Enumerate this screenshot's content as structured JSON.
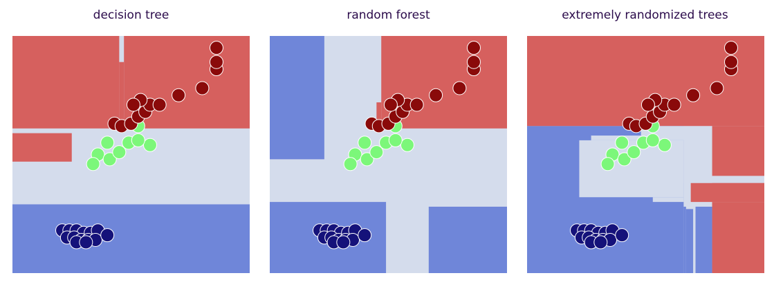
{
  "colors": {
    "class0_region": "#6f86d9",
    "class1_region": "#d4dcec",
    "class2_region": "#d6605e",
    "class0_point": "#15127a",
    "class1_point": "#7cf77a",
    "class2_point": "#8a0a0a"
  },
  "chart_data": [
    {
      "type": "scatter",
      "title": "decision tree",
      "xlim": [
        0,
        1
      ],
      "ylim": [
        0,
        1
      ],
      "grid": false,
      "axes_visible": false,
      "regions": [
        {
          "class": 2,
          "rects": [
            [
              0,
              0.61,
              0.45,
              1
            ],
            [
              0.47,
              0.61,
              1,
              1
            ],
            [
              0.45,
              0.61,
              0.47,
              0.89
            ],
            [
              0,
              0.47,
              0.25,
              0.59
            ]
          ]
        },
        {
          "class": 0,
          "rects": [
            [
              0,
              0,
              1,
              0.29
            ]
          ]
        }
      ],
      "points": [
        {
          "class": 0,
          "x": [
            0.21,
            0.24,
            0.27,
            0.3,
            0.33,
            0.36,
            0.23,
            0.26,
            0.29,
            0.32,
            0.35,
            0.4,
            0.27,
            0.31
          ],
          "y": [
            0.18,
            0.18,
            0.18,
            0.17,
            0.17,
            0.18,
            0.15,
            0.15,
            0.14,
            0.14,
            0.14,
            0.16,
            0.13,
            0.13
          ]
        },
        {
          "class": 1,
          "x": [
            0.4,
            0.36,
            0.34,
            0.41,
            0.45,
            0.53,
            0.49,
            0.58,
            0.53
          ],
          "y": [
            0.55,
            0.5,
            0.46,
            0.48,
            0.51,
            0.62,
            0.55,
            0.54,
            0.56
          ]
        },
        {
          "class": 2,
          "x": [
            0.43,
            0.46,
            0.5,
            0.53,
            0.56,
            0.58,
            0.62,
            0.7,
            0.8,
            0.86,
            0.86,
            0.86,
            0.54,
            0.51
          ],
          "y": [
            0.63,
            0.62,
            0.63,
            0.66,
            0.68,
            0.71,
            0.71,
            0.75,
            0.78,
            0.86,
            0.89,
            0.95,
            0.73,
            0.71
          ]
        }
      ]
    },
    {
      "type": "scatter",
      "title": "random forest",
      "xlim": [
        0,
        1
      ],
      "ylim": [
        0,
        1
      ],
      "grid": false,
      "axes_visible": false,
      "regions": [
        {
          "class": 2,
          "rects": [
            [
              0.47,
              0.61,
              1,
              1
            ],
            [
              0.45,
              0.61,
              0.47,
              0.72
            ]
          ]
        },
        {
          "class": 0,
          "rects": [
            [
              0,
              0.48,
              0.23,
              1
            ],
            [
              0,
              0,
              0.49,
              0.3
            ],
            [
              0.67,
              0,
              1,
              0.28
            ]
          ]
        }
      ],
      "points": [
        {
          "class": 0,
          "x": [
            0.21,
            0.24,
            0.27,
            0.3,
            0.33,
            0.36,
            0.23,
            0.26,
            0.29,
            0.32,
            0.35,
            0.4,
            0.27,
            0.31
          ],
          "y": [
            0.18,
            0.18,
            0.18,
            0.17,
            0.17,
            0.18,
            0.15,
            0.15,
            0.14,
            0.14,
            0.14,
            0.16,
            0.13,
            0.13
          ]
        },
        {
          "class": 1,
          "x": [
            0.4,
            0.36,
            0.34,
            0.41,
            0.45,
            0.53,
            0.49,
            0.58,
            0.53
          ],
          "y": [
            0.55,
            0.5,
            0.46,
            0.48,
            0.51,
            0.62,
            0.55,
            0.54,
            0.56
          ]
        },
        {
          "class": 2,
          "x": [
            0.43,
            0.46,
            0.5,
            0.53,
            0.56,
            0.58,
            0.62,
            0.7,
            0.8,
            0.86,
            0.86,
            0.86,
            0.54,
            0.51
          ],
          "y": [
            0.63,
            0.62,
            0.63,
            0.66,
            0.68,
            0.71,
            0.71,
            0.75,
            0.78,
            0.86,
            0.89,
            0.95,
            0.73,
            0.71
          ]
        }
      ]
    },
    {
      "type": "scatter",
      "title": "extremely randomized trees",
      "xlim": [
        0,
        1
      ],
      "ylim": [
        0,
        1
      ],
      "grid": false,
      "axes_visible": false,
      "regions": [
        {
          "class": 2,
          "rects": [
            [
              0,
              0.62,
              1,
              1
            ],
            [
              0.78,
              0.41,
              1,
              0.62
            ],
            [
              0.69,
              0.3,
              1,
              0.38
            ],
            [
              0.78,
              0,
              1,
              0.3
            ]
          ]
        },
        {
          "class": 0,
          "rects": [
            [
              0,
              0,
              0.66,
              0.62
            ],
            [
              0.66,
              0,
              0.67,
              0.28
            ],
            [
              0.67,
              0,
              0.7,
              0.27
            ],
            [
              0.71,
              0,
              0.78,
              0.28
            ]
          ]
        },
        {
          "class": 1,
          "rects": [
            [
              0.22,
              0.32,
              0.66,
              0.56
            ],
            [
              0.27,
              0.56,
              0.48,
              0.58
            ],
            [
              0.48,
              0.56,
              0.78,
              0.62
            ],
            [
              0.66,
              0.38,
              0.78,
              0.56
            ],
            [
              0.53,
              0.3,
              0.66,
              0.32
            ]
          ]
        }
      ],
      "points": [
        {
          "class": 0,
          "x": [
            0.21,
            0.24,
            0.27,
            0.3,
            0.33,
            0.36,
            0.23,
            0.26,
            0.29,
            0.32,
            0.35,
            0.4,
            0.27,
            0.31
          ],
          "y": [
            0.18,
            0.18,
            0.18,
            0.17,
            0.17,
            0.18,
            0.15,
            0.15,
            0.14,
            0.14,
            0.14,
            0.16,
            0.13,
            0.13
          ]
        },
        {
          "class": 1,
          "x": [
            0.4,
            0.36,
            0.34,
            0.41,
            0.45,
            0.53,
            0.49,
            0.58,
            0.53
          ],
          "y": [
            0.55,
            0.5,
            0.46,
            0.48,
            0.51,
            0.62,
            0.55,
            0.54,
            0.56
          ]
        },
        {
          "class": 2,
          "x": [
            0.43,
            0.46,
            0.5,
            0.53,
            0.56,
            0.58,
            0.62,
            0.7,
            0.8,
            0.86,
            0.86,
            0.86,
            0.54,
            0.51
          ],
          "y": [
            0.63,
            0.62,
            0.63,
            0.66,
            0.68,
            0.71,
            0.71,
            0.75,
            0.78,
            0.86,
            0.89,
            0.95,
            0.73,
            0.71
          ]
        }
      ]
    }
  ]
}
